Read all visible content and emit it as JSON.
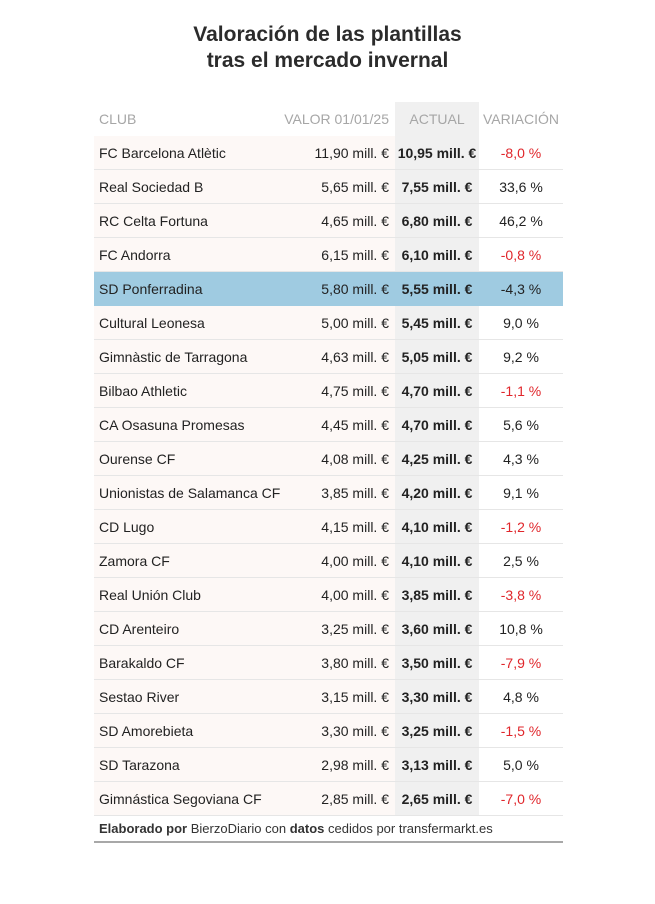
{
  "title": {
    "line1": "Valoración de las plantillas",
    "line2": "tras el mercado invernal"
  },
  "columns": {
    "club": "CLUB",
    "valor": "VALOR 01/01/25",
    "actual": "ACTUAL",
    "variacion": "VARIACIÓN"
  },
  "highlight_row": "SD Ponferradina",
  "colors": {
    "highlight": "#9fcbe1",
    "negative": "#e0262b",
    "actual_column": "#f0f0f0",
    "club_column": "#fdf8f6"
  },
  "footer": {
    "w1": "Elaborado por",
    "w2": " BierzoDiario con ",
    "w3": "datos",
    "w4": " cedidos por transfermarkt.es"
  },
  "chart_data": {
    "type": "table",
    "title": "Valoración de las plantillas tras el mercado invernal",
    "columns": [
      "CLUB",
      "VALOR 01/01/25",
      "ACTUAL",
      "VARIACIÓN"
    ],
    "rows": [
      {
        "club": "FC Barcelona Atlètic",
        "valor": "11,90 mill. €",
        "actual": "10,95 mill. €",
        "variacion": "-8,0 %"
      },
      {
        "club": "Real Sociedad B",
        "valor": "5,65 mill. €",
        "actual": "7,55 mill. €",
        "variacion": "33,6 %"
      },
      {
        "club": "RC Celta Fortuna",
        "valor": "4,65 mill. €",
        "actual": "6,80 mill. €",
        "variacion": "46,2 %"
      },
      {
        "club": "FC Andorra",
        "valor": "6,15 mill. €",
        "actual": "6,10 mill. €",
        "variacion": "-0,8 %"
      },
      {
        "club": "SD Ponferradina",
        "valor": "5,80 mill. €",
        "actual": "5,55 mill. €",
        "variacion": "-4,3 %"
      },
      {
        "club": "Cultural Leonesa",
        "valor": "5,00 mill. €",
        "actual": "5,45 mill. €",
        "variacion": "9,0 %"
      },
      {
        "club": "Gimnàstic de Tarragona",
        "valor": "4,63 mill. €",
        "actual": "5,05 mill. €",
        "variacion": "9,2 %"
      },
      {
        "club": "Bilbao Athletic",
        "valor": "4,75 mill. €",
        "actual": "4,70 mill. €",
        "variacion": "-1,1 %"
      },
      {
        "club": "CA Osasuna Promesas",
        "valor": "4,45 mill. €",
        "actual": "4,70 mill. €",
        "variacion": "5,6 %"
      },
      {
        "club": "Ourense CF",
        "valor": "4,08 mill. €",
        "actual": "4,25 mill. €",
        "variacion": "4,3 %"
      },
      {
        "club": "Unionistas de Salamanca CF",
        "valor": "3,85 mill. €",
        "actual": "4,20 mill. €",
        "variacion": "9,1 %"
      },
      {
        "club": "CD Lugo",
        "valor": "4,15 mill. €",
        "actual": "4,10 mill. €",
        "variacion": "-1,2 %"
      },
      {
        "club": "Zamora CF",
        "valor": "4,00 mill. €",
        "actual": "4,10 mill. €",
        "variacion": "2,5 %"
      },
      {
        "club": "Real Unión Club",
        "valor": "4,00 mill. €",
        "actual": "3,85 mill. €",
        "variacion": "-3,8 %"
      },
      {
        "club": "CD Arenteiro",
        "valor": "3,25 mill. €",
        "actual": "3,60 mill. €",
        "variacion": "10,8 %"
      },
      {
        "club": "Barakaldo CF",
        "valor": "3,80 mill. €",
        "actual": "3,50 mill. €",
        "variacion": "-7,9 %"
      },
      {
        "club": "Sestao River",
        "valor": "3,15 mill. €",
        "actual": "3,30 mill. €",
        "variacion": "4,8 %"
      },
      {
        "club": "SD Amorebieta",
        "valor": "3,30 mill. €",
        "actual": "3,25 mill. €",
        "variacion": "-1,5 %"
      },
      {
        "club": "SD Tarazona",
        "valor": "2,98 mill. €",
        "actual": "3,13 mill. €",
        "variacion": "5,0 %"
      },
      {
        "club": "Gimnástica Segoviana CF",
        "valor": "2,85 mill. €",
        "actual": "2,65 mill. €",
        "variacion": "-7,0 %"
      }
    ]
  }
}
